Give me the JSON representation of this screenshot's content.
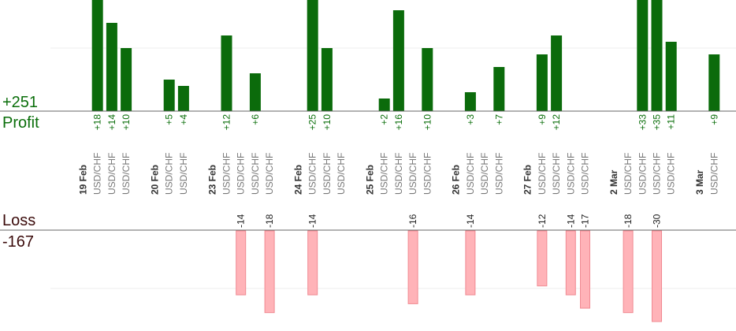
{
  "summary": {
    "profit_total": "+251",
    "profit_label": "Profit",
    "loss_label": "Loss",
    "loss_total": "-167"
  },
  "colors": {
    "profit_bar": "#0b6b0b",
    "profit_text": "#0a6e0a",
    "loss_bar": "#ffb3b8",
    "loss_bar_edge": "#f08a92",
    "axis": "#666666",
    "grid": "#eeeeee",
    "column_text": "#777777",
    "date_text": "#333333",
    "loss_text": "#222222"
  },
  "chart_data": [
    {
      "type": "bar",
      "title": "",
      "ylabel": "Profit",
      "ylim": [
        0,
        18
      ],
      "categories": [
        "19 Feb",
        "USD/CHF",
        "USD/CHF",
        "USD/CHF",
        "",
        "20 Feb",
        "USD/CHF",
        "USD/CHF",
        "",
        "23 Feb",
        "USD/CHF",
        "USD/CHF",
        "USD/CHF",
        "USD/CHF",
        "",
        "24 Feb",
        "USD/CHF",
        "USD/CHF",
        "USD/CHF",
        "",
        "25 Feb",
        "USD/CHF",
        "USD/CHF",
        "USD/CHF",
        "USD/CHF",
        "",
        "26 Feb",
        "USD/CHF",
        "USD/CHF",
        "USD/CHF",
        "",
        "27 Feb",
        "USD/CHF",
        "USD/CHF",
        "USD/CHF",
        "USD/CHF",
        "",
        "2 Mar",
        "USD/CHF",
        "USD/CHF",
        "USD/CHF",
        "USD/CHF",
        "",
        "3 Mar",
        "USD/CHF"
      ],
      "values": [
        null,
        18,
        14,
        10,
        null,
        null,
        5,
        4,
        null,
        null,
        12,
        null,
        6,
        null,
        null,
        null,
        25,
        10,
        null,
        null,
        null,
        2,
        16,
        null,
        10,
        null,
        null,
        3,
        null,
        7,
        null,
        null,
        9,
        12,
        null,
        null,
        null,
        null,
        null,
        33,
        35,
        11,
        null,
        null,
        9
      ],
      "value_labels": [
        "",
        "+18",
        "+14",
        "+10",
        "",
        "",
        "+5",
        "+4",
        "",
        "",
        "+12",
        "",
        "+6",
        "",
        "",
        "",
        "+25",
        "+10",
        "",
        "",
        "",
        "+2",
        "+16",
        "",
        "+10",
        "",
        "",
        "+3",
        "",
        "+7",
        "",
        "",
        "+9",
        "+12",
        "",
        "",
        "",
        "",
        "",
        "+33",
        "+35",
        "+11",
        "",
        "",
        "+9"
      ]
    },
    {
      "type": "bar",
      "title": "",
      "ylabel": "Loss",
      "ylim": [
        -18,
        0
      ],
      "categories": [
        "19 Feb",
        "USD/CHF",
        "USD/CHF",
        "USD/CHF",
        "",
        "20 Feb",
        "USD/CHF",
        "USD/CHF",
        "",
        "23 Feb",
        "USD/CHF",
        "USD/CHF",
        "USD/CHF",
        "USD/CHF",
        "",
        "24 Feb",
        "USD/CHF",
        "USD/CHF",
        "USD/CHF",
        "",
        "25 Feb",
        "USD/CHF",
        "USD/CHF",
        "USD/CHF",
        "USD/CHF",
        "",
        "26 Feb",
        "USD/CHF",
        "USD/CHF",
        "USD/CHF",
        "",
        "27 Feb",
        "USD/CHF",
        "USD/CHF",
        "USD/CHF",
        "USD/CHF",
        "",
        "2 Mar",
        "USD/CHF",
        "USD/CHF",
        "USD/CHF",
        "USD/CHF",
        "",
        "3 Mar",
        "USD/CHF"
      ],
      "values": [
        null,
        null,
        null,
        null,
        null,
        null,
        null,
        null,
        null,
        null,
        null,
        -14,
        null,
        -18,
        null,
        null,
        -14,
        null,
        null,
        null,
        null,
        null,
        null,
        -16,
        null,
        null,
        null,
        -14,
        null,
        null,
        null,
        null,
        -12,
        null,
        -14,
        -17,
        null,
        null,
        -18,
        null,
        -30,
        null,
        null,
        null,
        null
      ],
      "value_labels": [
        "",
        "",
        "",
        "",
        "",
        "",
        "",
        "",
        "",
        "",
        "",
        "-14",
        "",
        "-18",
        "",
        "",
        "-14",
        "",
        "",
        "",
        "",
        "",
        "",
        "-16",
        "",
        "",
        "",
        "-14",
        "",
        "",
        "",
        "",
        "-12",
        "",
        "-14",
        "-17",
        "",
        "",
        "-18",
        "",
        "-30",
        "",
        "",
        "",
        ""
      ]
    }
  ]
}
